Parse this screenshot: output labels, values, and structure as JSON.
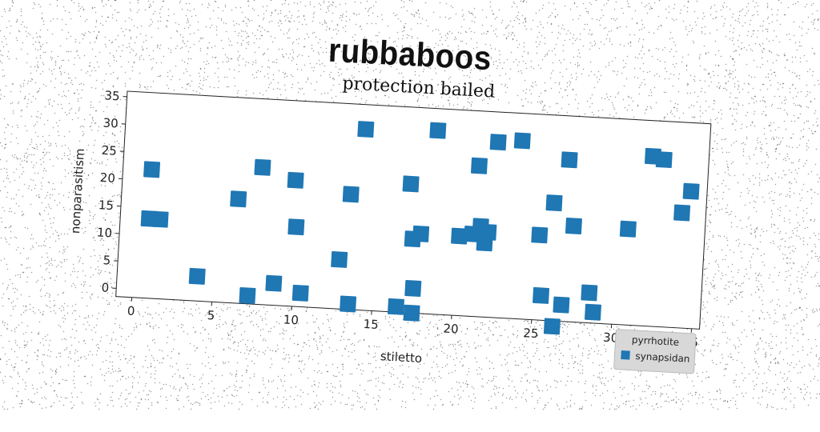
{
  "suptitle": "rubbaboos",
  "chart_data": {
    "type": "scatter",
    "title": "protection bailed",
    "xlabel": "stiletto",
    "ylabel": "nonparasitism",
    "xlim": [
      -1,
      35.5
    ],
    "ylim": [
      -1.5,
      36
    ],
    "xticks": [
      0,
      5,
      10,
      15,
      20,
      25,
      30,
      35
    ],
    "yticks": [
      0,
      5,
      10,
      15,
      20,
      25,
      30,
      35
    ],
    "grid": false,
    "legend": {
      "title": "pyrrhotite",
      "placement": "lower-right"
    },
    "series": [
      {
        "name": "synapsidan",
        "color": "#1f77b4",
        "marker": "square",
        "points": [
          [
            0.8,
            22
          ],
          [
            0.8,
            13
          ],
          [
            1.5,
            13
          ],
          [
            4,
            3
          ],
          [
            6.3,
            17.5
          ],
          [
            7.2,
            0
          ],
          [
            7.7,
            23.5
          ],
          [
            8.8,
            2.5
          ],
          [
            9.8,
            21.5
          ],
          [
            10,
            13
          ],
          [
            10.5,
            1
          ],
          [
            12.8,
            7.5
          ],
          [
            13.3,
            19.5
          ],
          [
            13.5,
            -0.5
          ],
          [
            14,
            31.5
          ],
          [
            16.5,
            -0.5
          ],
          [
            17,
            22
          ],
          [
            17.3,
            12
          ],
          [
            17.5,
            3
          ],
          [
            17.5,
            -1.5
          ],
          [
            17.8,
            13
          ],
          [
            18.5,
            32
          ],
          [
            20.2,
            13
          ],
          [
            21,
            13.5
          ],
          [
            21.2,
            26
          ],
          [
            21.5,
            15
          ],
          [
            21.8,
            12
          ],
          [
            22,
            14
          ],
          [
            22.3,
            30.5
          ],
          [
            23.8,
            31
          ],
          [
            25.2,
            14
          ],
          [
            25.5,
            3
          ],
          [
            26,
            20
          ],
          [
            26.3,
            -2.5
          ],
          [
            26.8,
            28
          ],
          [
            26.8,
            1.5
          ],
          [
            27.3,
            16
          ],
          [
            28.5,
            4
          ],
          [
            28.8,
            0.5
          ],
          [
            30.7,
            16
          ],
          [
            32,
            29.5
          ],
          [
            32.7,
            29
          ],
          [
            34,
            19.5
          ],
          [
            34.5,
            23.5
          ]
        ]
      }
    ]
  }
}
